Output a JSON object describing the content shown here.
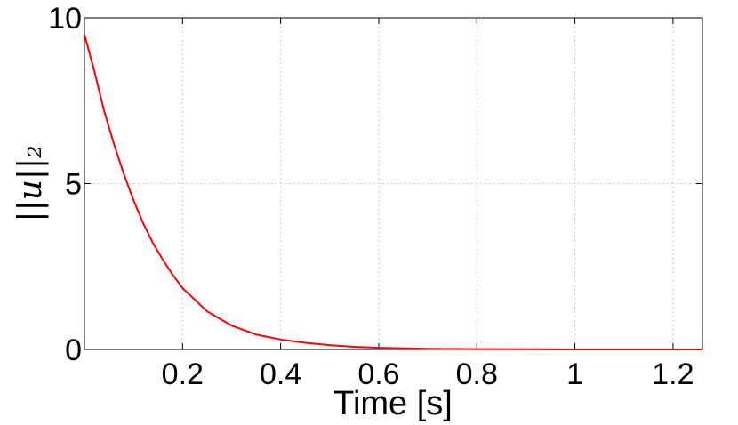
{
  "chart_data": {
    "type": "line",
    "xlabel": "Time [s]",
    "ylabel": "||u||₂",
    "xlim": [
      0,
      1.26
    ],
    "ylim": [
      0,
      10
    ],
    "xticks": [
      0.2,
      0.4,
      0.6,
      0.8,
      1,
      1.2
    ],
    "xtick_labels": [
      "0.2",
      "0.4",
      "0.6",
      "0.8",
      "1",
      "1.2"
    ],
    "yticks": [
      0,
      5,
      10
    ],
    "ytick_labels": [
      "0",
      "5",
      "10"
    ],
    "grid": true,
    "series": [
      {
        "color": "#ff0000",
        "x": [
          0,
          0.02,
          0.04,
          0.06,
          0.08,
          0.1,
          0.12,
          0.14,
          0.16,
          0.18,
          0.2,
          0.25,
          0.3,
          0.35,
          0.4,
          0.45,
          0.5,
          0.55,
          0.6,
          0.7,
          0.8,
          0.9,
          1.0,
          1.1,
          1.2,
          1.26
        ],
        "y": [
          9.5,
          8.4,
          7.2,
          6.2,
          5.3,
          4.5,
          3.8,
          3.2,
          2.7,
          2.25,
          1.85,
          1.15,
          0.72,
          0.45,
          0.3,
          0.2,
          0.13,
          0.08,
          0.05,
          0.02,
          0.01,
          0.005,
          0.0,
          0.0,
          0.0,
          0.0
        ]
      }
    ]
  }
}
